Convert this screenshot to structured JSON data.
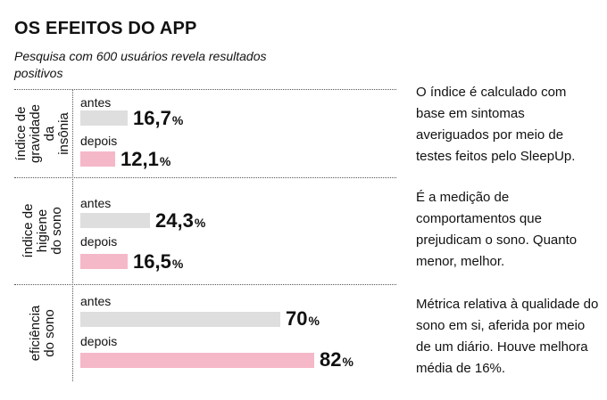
{
  "chart_data": {
    "type": "bar",
    "orientation": "horizontal",
    "title": "OS EFEITOS DO APP",
    "subtitle": "Pesquisa com 600 usuários revela resultados positivos",
    "unit": "%",
    "series_labels": {
      "before": "antes",
      "after": "depois"
    },
    "groups": [
      {
        "label": "índice de gravidade da insônia",
        "before": {
          "value": 16.7,
          "display": "16,7"
        },
        "after": {
          "value": 12.1,
          "display": "12,1"
        },
        "description": "O índice é calculado com base em sintomas averiguados por meio de testes feitos pelo SleepUp."
      },
      {
        "label": "índice de higiene do sono",
        "before": {
          "value": 24.3,
          "display": "24,3"
        },
        "after": {
          "value": 16.5,
          "display": "16,5"
        },
        "description": "É a medição de comportamentos que prejudicam o sono. Quanto menor, melhor."
      },
      {
        "label": "eficiência do sono",
        "before": {
          "value": 70,
          "display": "70"
        },
        "after": {
          "value": 82,
          "display": "82"
        },
        "description": "Métrica relativa à qualidade do sono em si, aferida por meio de um diário. Houve melhora média de 16%."
      }
    ]
  },
  "colors": {
    "before": "#dedede",
    "after": "#f5b8c8"
  }
}
